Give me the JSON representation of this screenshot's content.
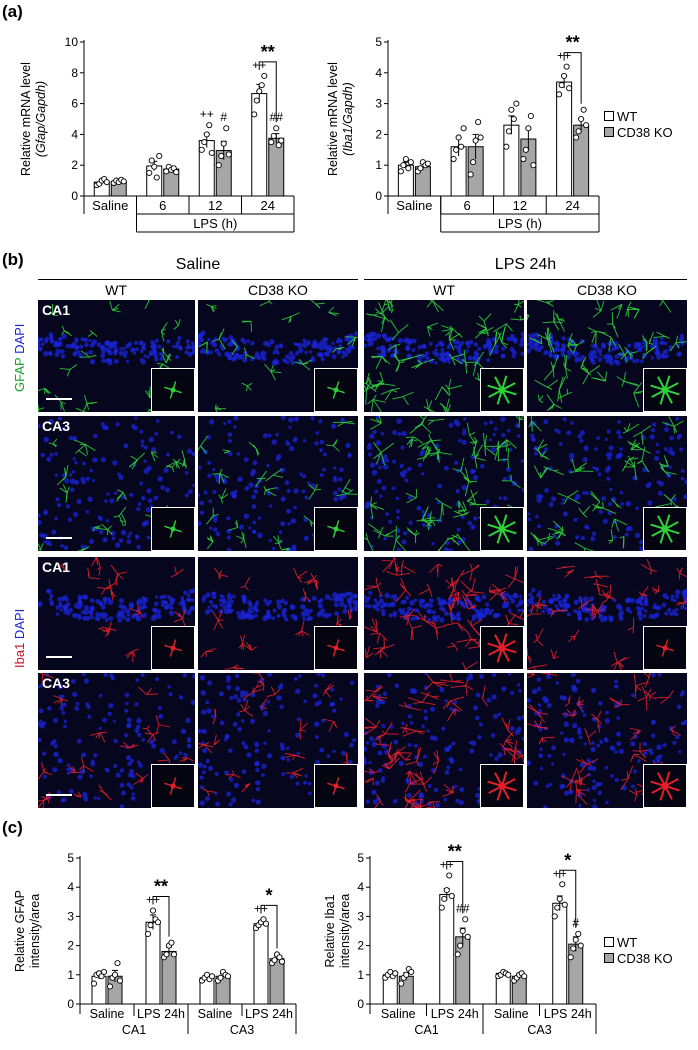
{
  "panels": {
    "a": "(a)",
    "b": "(b)",
    "c": "(c)"
  },
  "colors": {
    "wt": "#ffffff",
    "ko": "#a6a6a6",
    "gfap": "#2fd13a",
    "iba1": "#e3202a",
    "dapi": "#1a24d8"
  },
  "legend": {
    "wt": "WT",
    "ko": "CD38 KO"
  },
  "micrograph": {
    "group_saline": "Saline",
    "group_lps": "LPS 24h",
    "col_wt": "WT",
    "col_ko": "CD38 KO",
    "gfap_marker": "GFAP",
    "iba1_marker": "Iba1",
    "dapi": "DAPI",
    "region_ca1": "CA1",
    "region_ca3": "CA3"
  },
  "chart_data": [
    {
      "type": "bar",
      "panel": "(a)",
      "ylabel_line1": "Relative mRNA level",
      "ylabel_line2": "(Gfap/Gapdh)",
      "ylim": [
        0,
        10
      ],
      "yticks": [
        0,
        2,
        4,
        6,
        8,
        10
      ],
      "categories": [
        "Saline",
        "6",
        "12",
        "24"
      ],
      "xgroup_label": "LPS (h)",
      "series": [
        {
          "name": "WT",
          "values": [
            0.9,
            1.95,
            3.6,
            6.65
          ],
          "err": [
            0.15,
            0.3,
            0.45,
            0.6
          ]
        },
        {
          "name": "CD38 KO",
          "values": [
            0.95,
            1.75,
            2.95,
            3.75
          ],
          "err": [
            0.1,
            0.15,
            0.6,
            0.3
          ]
        }
      ],
      "points": [
        [
          [
            0.7,
            0.8,
            1.0,
            1.1,
            0.9
          ],
          [
            0.85,
            1.0,
            0.9,
            1.05,
            0.95
          ]
        ],
        [
          [
            1.5,
            2.3,
            1.9,
            1.2,
            2.6
          ],
          [
            1.6,
            1.9,
            1.7,
            1.8,
            1.55
          ]
        ],
        [
          [
            3.0,
            3.5,
            4.0,
            4.6,
            2.8
          ],
          [
            2.0,
            2.6,
            3.4,
            4.4,
            2.7
          ]
        ],
        [
          [
            5.3,
            6.2,
            6.8,
            7.2,
            7.8
          ],
          [
            3.5,
            3.9,
            4.4,
            3.3,
            3.6
          ]
        ]
      ],
      "annotations": {
        "wt_marks": [
          "",
          "",
          "++",
          "++"
        ],
        "ko_marks": [
          "",
          "",
          "#",
          "##"
        ],
        "bracket": {
          "category": "24",
          "text": "**"
        }
      }
    },
    {
      "type": "bar",
      "panel": "(a)",
      "ylabel_line1": "Relative mRNA level",
      "ylabel_line2": "(Iba1/Gapdh)",
      "ylim": [
        0,
        5
      ],
      "yticks": [
        0,
        1,
        2,
        3,
        4,
        5
      ],
      "categories": [
        "Saline",
        "6",
        "12",
        "24"
      ],
      "xgroup_label": "LPS (h)",
      "series": [
        {
          "name": "WT",
          "values": [
            1.0,
            1.6,
            2.3,
            3.7
          ],
          "err": [
            0.1,
            0.3,
            0.3,
            0.2
          ]
        },
        {
          "name": "CD38 KO",
          "values": [
            0.95,
            1.6,
            1.85,
            2.3
          ],
          "err": [
            0.1,
            0.4,
            0.35,
            0.2
          ]
        }
      ],
      "points": [
        [
          [
            0.8,
            1.0,
            1.2,
            0.9,
            1.1
          ],
          [
            0.8,
            0.9,
            1.1,
            1.0,
            1.05
          ]
        ],
        [
          [
            1.2,
            1.5,
            1.9,
            1.6,
            2.2
          ],
          [
            0.7,
            1.1,
            1.8,
            2.4,
            1.9
          ]
        ],
        [
          [
            1.6,
            2.1,
            2.8,
            2.5,
            3.0
          ],
          [
            1.2,
            1.5,
            2.2,
            2.6,
            1.0
          ]
        ],
        [
          [
            3.3,
            3.6,
            3.9,
            4.2,
            3.5
          ],
          [
            1.9,
            2.1,
            2.5,
            2.8,
            2.3
          ]
        ]
      ],
      "annotations": {
        "wt_marks": [
          "",
          "",
          "",
          "++"
        ],
        "ko_marks": [
          "",
          "",
          "",
          ""
        ],
        "bracket": {
          "category": "24",
          "text": "**"
        }
      }
    },
    {
      "type": "bar",
      "panel": "(c)",
      "ylabel_line1": "Relative GFAP",
      "ylabel_line2": "intensity/area",
      "ylim": [
        0,
        5
      ],
      "yticks": [
        0,
        1,
        2,
        3,
        4,
        5
      ],
      "categories": [
        "Saline",
        "LPS 24h",
        "Saline",
        "LPS 24h"
      ],
      "region_labels": [
        "CA1",
        "CA3"
      ],
      "series": [
        {
          "name": "WT",
          "values": [
            0.95,
            2.8,
            0.9,
            2.75
          ],
          "err": [
            0.1,
            0.25,
            0.07,
            0.1
          ]
        },
        {
          "name": "CD38 KO",
          "values": [
            0.95,
            1.8,
            0.95,
            1.55
          ],
          "err": [
            0.2,
            0.15,
            0.1,
            0.1
          ]
        }
      ],
      "points": [
        [
          [
            0.7,
            1.0,
            1.05,
            0.95,
            1.1
          ],
          [
            0.6,
            0.9,
            1.0,
            1.4,
            0.8
          ]
        ],
        [
          [
            2.4,
            2.7,
            3.2,
            2.9,
            2.8
          ],
          [
            1.6,
            1.7,
            2.0,
            2.1,
            1.7
          ]
        ],
        [
          [
            0.8,
            0.9,
            1.0,
            0.85,
            0.95
          ],
          [
            0.8,
            0.9,
            1.1,
            1.0,
            0.95
          ]
        ],
        [
          [
            2.6,
            2.7,
            2.8,
            2.9,
            2.75
          ],
          [
            1.4,
            1.5,
            1.7,
            1.6,
            1.45
          ]
        ]
      ],
      "annotations": {
        "wt_marks": [
          "",
          "++",
          "",
          "++"
        ],
        "ko_marks": [
          "",
          "",
          "",
          ""
        ],
        "brackets": [
          {
            "category": "LPS 24h",
            "index": 1,
            "text": "**"
          },
          {
            "category": "LPS 24h",
            "index": 3,
            "text": "*"
          }
        ]
      }
    },
    {
      "type": "bar",
      "panel": "(c)",
      "ylabel_line1": "Relative Iba1",
      "ylabel_line2": "intensity/area",
      "ylim": [
        0,
        5
      ],
      "yticks": [
        0,
        1,
        2,
        3,
        4,
        5
      ],
      "categories": [
        "Saline",
        "LPS 24h",
        "Saline",
        "LPS 24h"
      ],
      "region_labels": [
        "CA1",
        "CA3"
      ],
      "series": [
        {
          "name": "WT",
          "values": [
            1.0,
            3.75,
            1.05,
            3.45
          ],
          "err": [
            0.07,
            0.2,
            0.05,
            0.25
          ]
        },
        {
          "name": "CD38 KO",
          "values": [
            0.95,
            2.3,
            0.95,
            2.05
          ],
          "err": [
            0.12,
            0.3,
            0.1,
            0.25
          ]
        }
      ],
      "points": [
        [
          [
            0.9,
            1.0,
            1.1,
            0.95,
            1.05
          ],
          [
            0.7,
            0.9,
            1.0,
            1.2,
            1.1
          ]
        ],
        [
          [
            3.3,
            3.6,
            3.9,
            4.4,
            3.7
          ],
          [
            1.7,
            2.0,
            2.5,
            2.9,
            2.3
          ]
        ],
        [
          [
            0.95,
            1.0,
            1.1,
            1.05,
            1.0
          ],
          [
            0.8,
            0.9,
            1.0,
            1.05,
            0.95
          ]
        ],
        [
          [
            3.0,
            3.3,
            3.6,
            4.1,
            3.4
          ],
          [
            1.6,
            1.9,
            2.2,
            2.4,
            2.0
          ]
        ]
      ],
      "annotations": {
        "wt_marks": [
          "",
          "++",
          "",
          "++"
        ],
        "ko_marks": [
          "",
          "##",
          "",
          "#"
        ],
        "brackets": [
          {
            "category": "LPS 24h",
            "index": 1,
            "text": "**"
          },
          {
            "category": "LPS 24h",
            "index": 3,
            "text": "*"
          }
        ]
      }
    }
  ]
}
